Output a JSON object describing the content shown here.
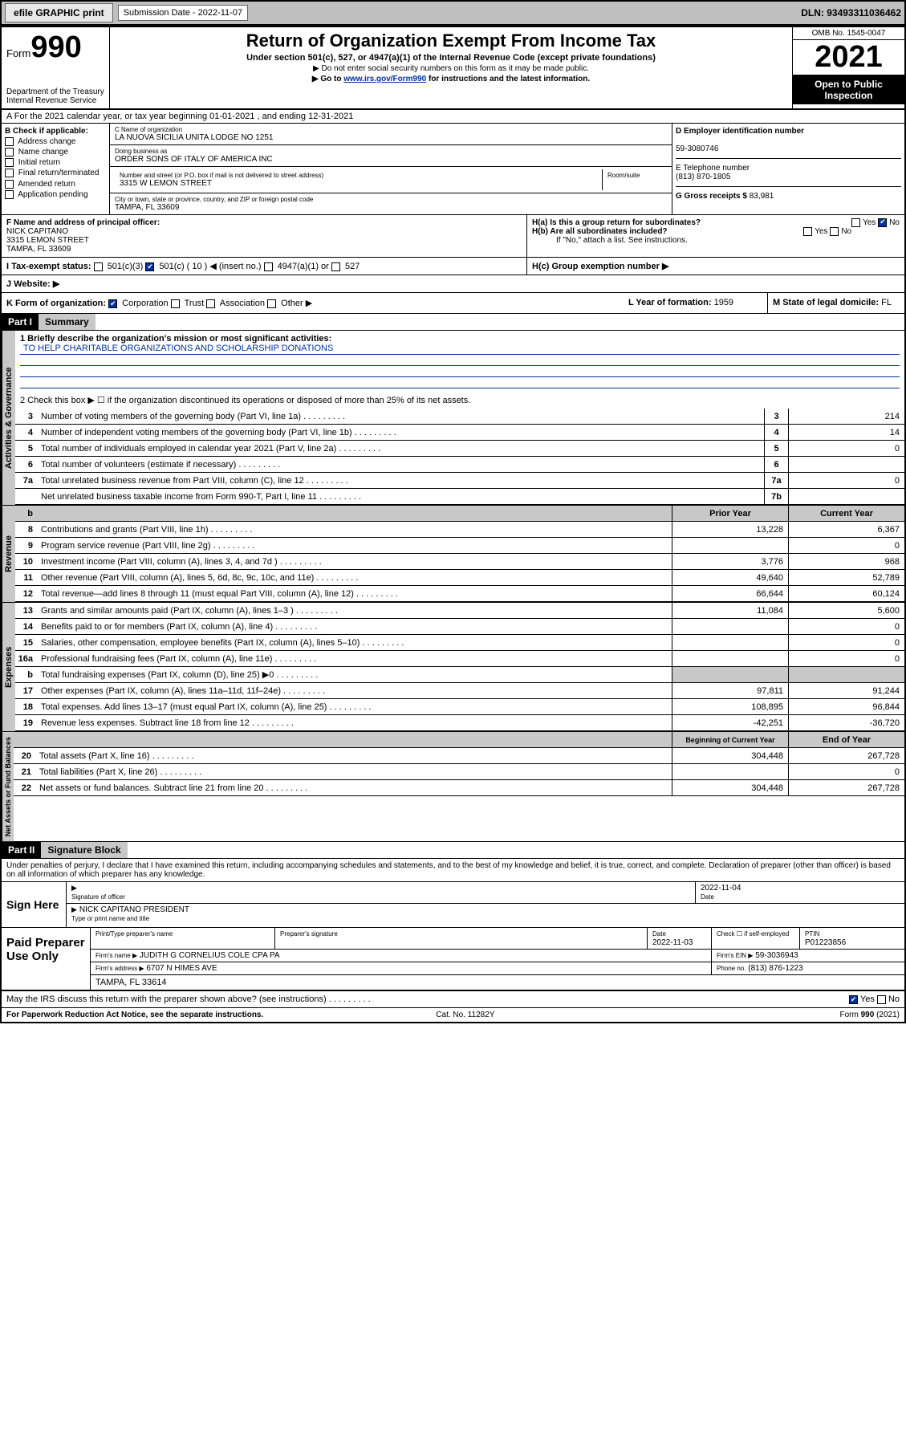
{
  "topbar": {
    "efile": "efile GRAPHIC print",
    "subdate_label": "Submission Date - 2022-11-07",
    "dln": "DLN: 93493311036462"
  },
  "header": {
    "form_label": "Form",
    "form_no": "990",
    "dept": "Department of the Treasury Internal Revenue Service",
    "title": "Return of Organization Exempt From Income Tax",
    "sub": "Under section 501(c), 527, or 4947(a)(1) of the Internal Revenue Code (except private foundations)",
    "note1": "▶ Do not enter social security numbers on this form as it may be made public.",
    "note2_pre": "▶ Go to ",
    "note2_link": "www.irs.gov/Form990",
    "note2_post": " for instructions and the latest information.",
    "omb": "OMB No. 1545-0047",
    "year": "2021",
    "open": "Open to Public Inspection"
  },
  "rowA": "A  For the 2021 calendar year, or tax year beginning 01-01-2021    , and ending 12-31-2021",
  "colB": {
    "title": "B Check if applicable:",
    "items": [
      "Address change",
      "Name change",
      "Initial return",
      "Final return/terminated",
      "Amended return",
      "Application pending"
    ]
  },
  "colC": {
    "name_label": "C Name of organization",
    "name": "LA NUOVA SICILIA UNITA LODGE NO 1251",
    "dba_label": "Doing business as",
    "dba": "ORDER SONS OF ITALY OF AMERICA INC",
    "street_label": "Number and street (or P.O. box if mail is not delivered to street address)",
    "room_label": "Room/suite",
    "street": "3315 W LEMON STREET",
    "city_label": "City or town, state or province, country, and ZIP or foreign postal code",
    "city": "TAMPA, FL  33609"
  },
  "colD": {
    "ein_label": "D Employer identification number",
    "ein": "59-3080746",
    "tel_label": "E Telephone number",
    "tel": "(813) 870-1805",
    "gross_label": "G Gross receipts $",
    "gross": "83,981"
  },
  "rowF": {
    "label": "F  Name and address of principal officer:",
    "name": "NICK CAPITANO",
    "street": "3315 LEMON STREET",
    "city": "TAMPA, FL  33609"
  },
  "rowH": {
    "ha": "H(a)  Is this a group return for subordinates?",
    "hb": "H(b)  Are all subordinates included?",
    "hb_note": "If \"No,\" attach a list. See instructions.",
    "hc": "H(c)  Group exemption number ▶"
  },
  "rowI": {
    "label": "I   Tax-exempt status:",
    "opts": [
      "501(c)(3)",
      "501(c) ( 10 ) ◀ (insert no.)",
      "4947(a)(1) or",
      "527"
    ]
  },
  "rowJ": "J   Website: ▶",
  "rowK": "K Form of organization:",
  "rowK_opts": [
    "Corporation",
    "Trust",
    "Association",
    "Other ▶"
  ],
  "rowL": {
    "label": "L Year of formation:",
    "val": "1959"
  },
  "rowM": {
    "label": "M State of legal domicile:",
    "val": "FL"
  },
  "part1": {
    "hdr": "Part I",
    "title": "Summary"
  },
  "mission_label": "1   Briefly describe the organization's mission or most significant activities:",
  "mission": "TO HELP CHARITABLE ORGANIZATIONS AND SCHOLARSHIP DONATIONS",
  "line2": "2   Check this box ▶ ☐  if the organization discontinued its operations or disposed of more than 25% of its net assets.",
  "vert": {
    "gov": "Activities & Governance",
    "rev": "Revenue",
    "exp": "Expenses",
    "net": "Net Assets or Fund Balances"
  },
  "gov_lines": [
    {
      "n": "3",
      "d": "Number of voting members of the governing body (Part VI, line 1a)",
      "box": "3",
      "v": "214"
    },
    {
      "n": "4",
      "d": "Number of independent voting members of the governing body (Part VI, line 1b)",
      "box": "4",
      "v": "14"
    },
    {
      "n": "5",
      "d": "Total number of individuals employed in calendar year 2021 (Part V, line 2a)",
      "box": "5",
      "v": "0"
    },
    {
      "n": "6",
      "d": "Total number of volunteers (estimate if necessary)",
      "box": "6",
      "v": ""
    },
    {
      "n": "7a",
      "d": "Total unrelated business revenue from Part VIII, column (C), line 12",
      "box": "7a",
      "v": "0"
    },
    {
      "n": "",
      "d": "Net unrelated business taxable income from Form 990-T, Part I, line 11",
      "box": "7b",
      "v": ""
    }
  ],
  "col_hdrs": {
    "b": "b",
    "prior": "Prior Year",
    "curr": "Current Year"
  },
  "rev_lines": [
    {
      "n": "8",
      "d": "Contributions and grants (Part VIII, line 1h)",
      "p": "13,228",
      "c": "6,367"
    },
    {
      "n": "9",
      "d": "Program service revenue (Part VIII, line 2g)",
      "p": "",
      "c": "0"
    },
    {
      "n": "10",
      "d": "Investment income (Part VIII, column (A), lines 3, 4, and 7d )",
      "p": "3,776",
      "c": "968"
    },
    {
      "n": "11",
      "d": "Other revenue (Part VIII, column (A), lines 5, 6d, 8c, 9c, 10c, and 11e)",
      "p": "49,640",
      "c": "52,789"
    },
    {
      "n": "12",
      "d": "Total revenue—add lines 8 through 11 (must equal Part VIII, column (A), line 12)",
      "p": "66,644",
      "c": "60,124"
    }
  ],
  "exp_lines": [
    {
      "n": "13",
      "d": "Grants and similar amounts paid (Part IX, column (A), lines 1–3 )",
      "p": "11,084",
      "c": "5,600"
    },
    {
      "n": "14",
      "d": "Benefits paid to or for members (Part IX, column (A), line 4)",
      "p": "",
      "c": "0"
    },
    {
      "n": "15",
      "d": "Salaries, other compensation, employee benefits (Part IX, column (A), lines 5–10)",
      "p": "",
      "c": "0"
    },
    {
      "n": "16a",
      "d": "Professional fundraising fees (Part IX, column (A), line 11e)",
      "p": "",
      "c": "0"
    },
    {
      "n": "b",
      "d": "Total fundraising expenses (Part IX, column (D), line 25) ▶0",
      "p": "shade",
      "c": "shade"
    },
    {
      "n": "17",
      "d": "Other expenses (Part IX, column (A), lines 11a–11d, 11f–24e)",
      "p": "97,811",
      "c": "91,244"
    },
    {
      "n": "18",
      "d": "Total expenses. Add lines 13–17 (must equal Part IX, column (A), line 25)",
      "p": "108,895",
      "c": "96,844"
    },
    {
      "n": "19",
      "d": "Revenue less expenses. Subtract line 18 from line 12",
      "p": "-42,251",
      "c": "-36,720"
    }
  ],
  "net_hdrs": {
    "b": "Beginning of Current Year",
    "e": "End of Year"
  },
  "net_lines": [
    {
      "n": "20",
      "d": "Total assets (Part X, line 16)",
      "p": "304,448",
      "c": "267,728"
    },
    {
      "n": "21",
      "d": "Total liabilities (Part X, line 26)",
      "p": "",
      "c": "0"
    },
    {
      "n": "22",
      "d": "Net assets or fund balances. Subtract line 21 from line 20",
      "p": "304,448",
      "c": "267,728"
    }
  ],
  "part2": {
    "hdr": "Part II",
    "title": "Signature Block"
  },
  "penalty": "Under penalties of perjury, I declare that I have examined this return, including accompanying schedules and statements, and to the best of my knowledge and belief, it is true, correct, and complete. Declaration of preparer (other than officer) is based on all information of which preparer has any knowledge.",
  "sign": {
    "label": "Sign Here",
    "sig_label": "Signature of officer",
    "date": "2022-11-04",
    "date_label": "Date",
    "name": "NICK CAPITANO  PRESIDENT",
    "name_label": "Type or print name and title"
  },
  "paid": {
    "label": "Paid Preparer Use Only",
    "h1": "Print/Type preparer's name",
    "h2": "Preparer's signature",
    "h3": "Date",
    "h3v": "2022-11-03",
    "h4": "Check ☐ if self-employed",
    "h5": "PTIN",
    "h5v": "P01223856",
    "firm_label": "Firm's name   ▶",
    "firm": "JUDITH G CORNELIUS COLE CPA PA",
    "ein_label": "Firm's EIN ▶",
    "ein": "59-3036943",
    "addr_label": "Firm's address ▶",
    "addr": "6707 N HIMES AVE",
    "city": "TAMPA, FL  33614",
    "phone_label": "Phone no.",
    "phone": "(813) 876-1223"
  },
  "discuss": "May the IRS discuss this return with the preparer shown above? (see instructions)",
  "footer": {
    "l": "For Paperwork Reduction Act Notice, see the separate instructions.",
    "m": "Cat. No. 11282Y",
    "r": "Form 990 (2021)"
  }
}
